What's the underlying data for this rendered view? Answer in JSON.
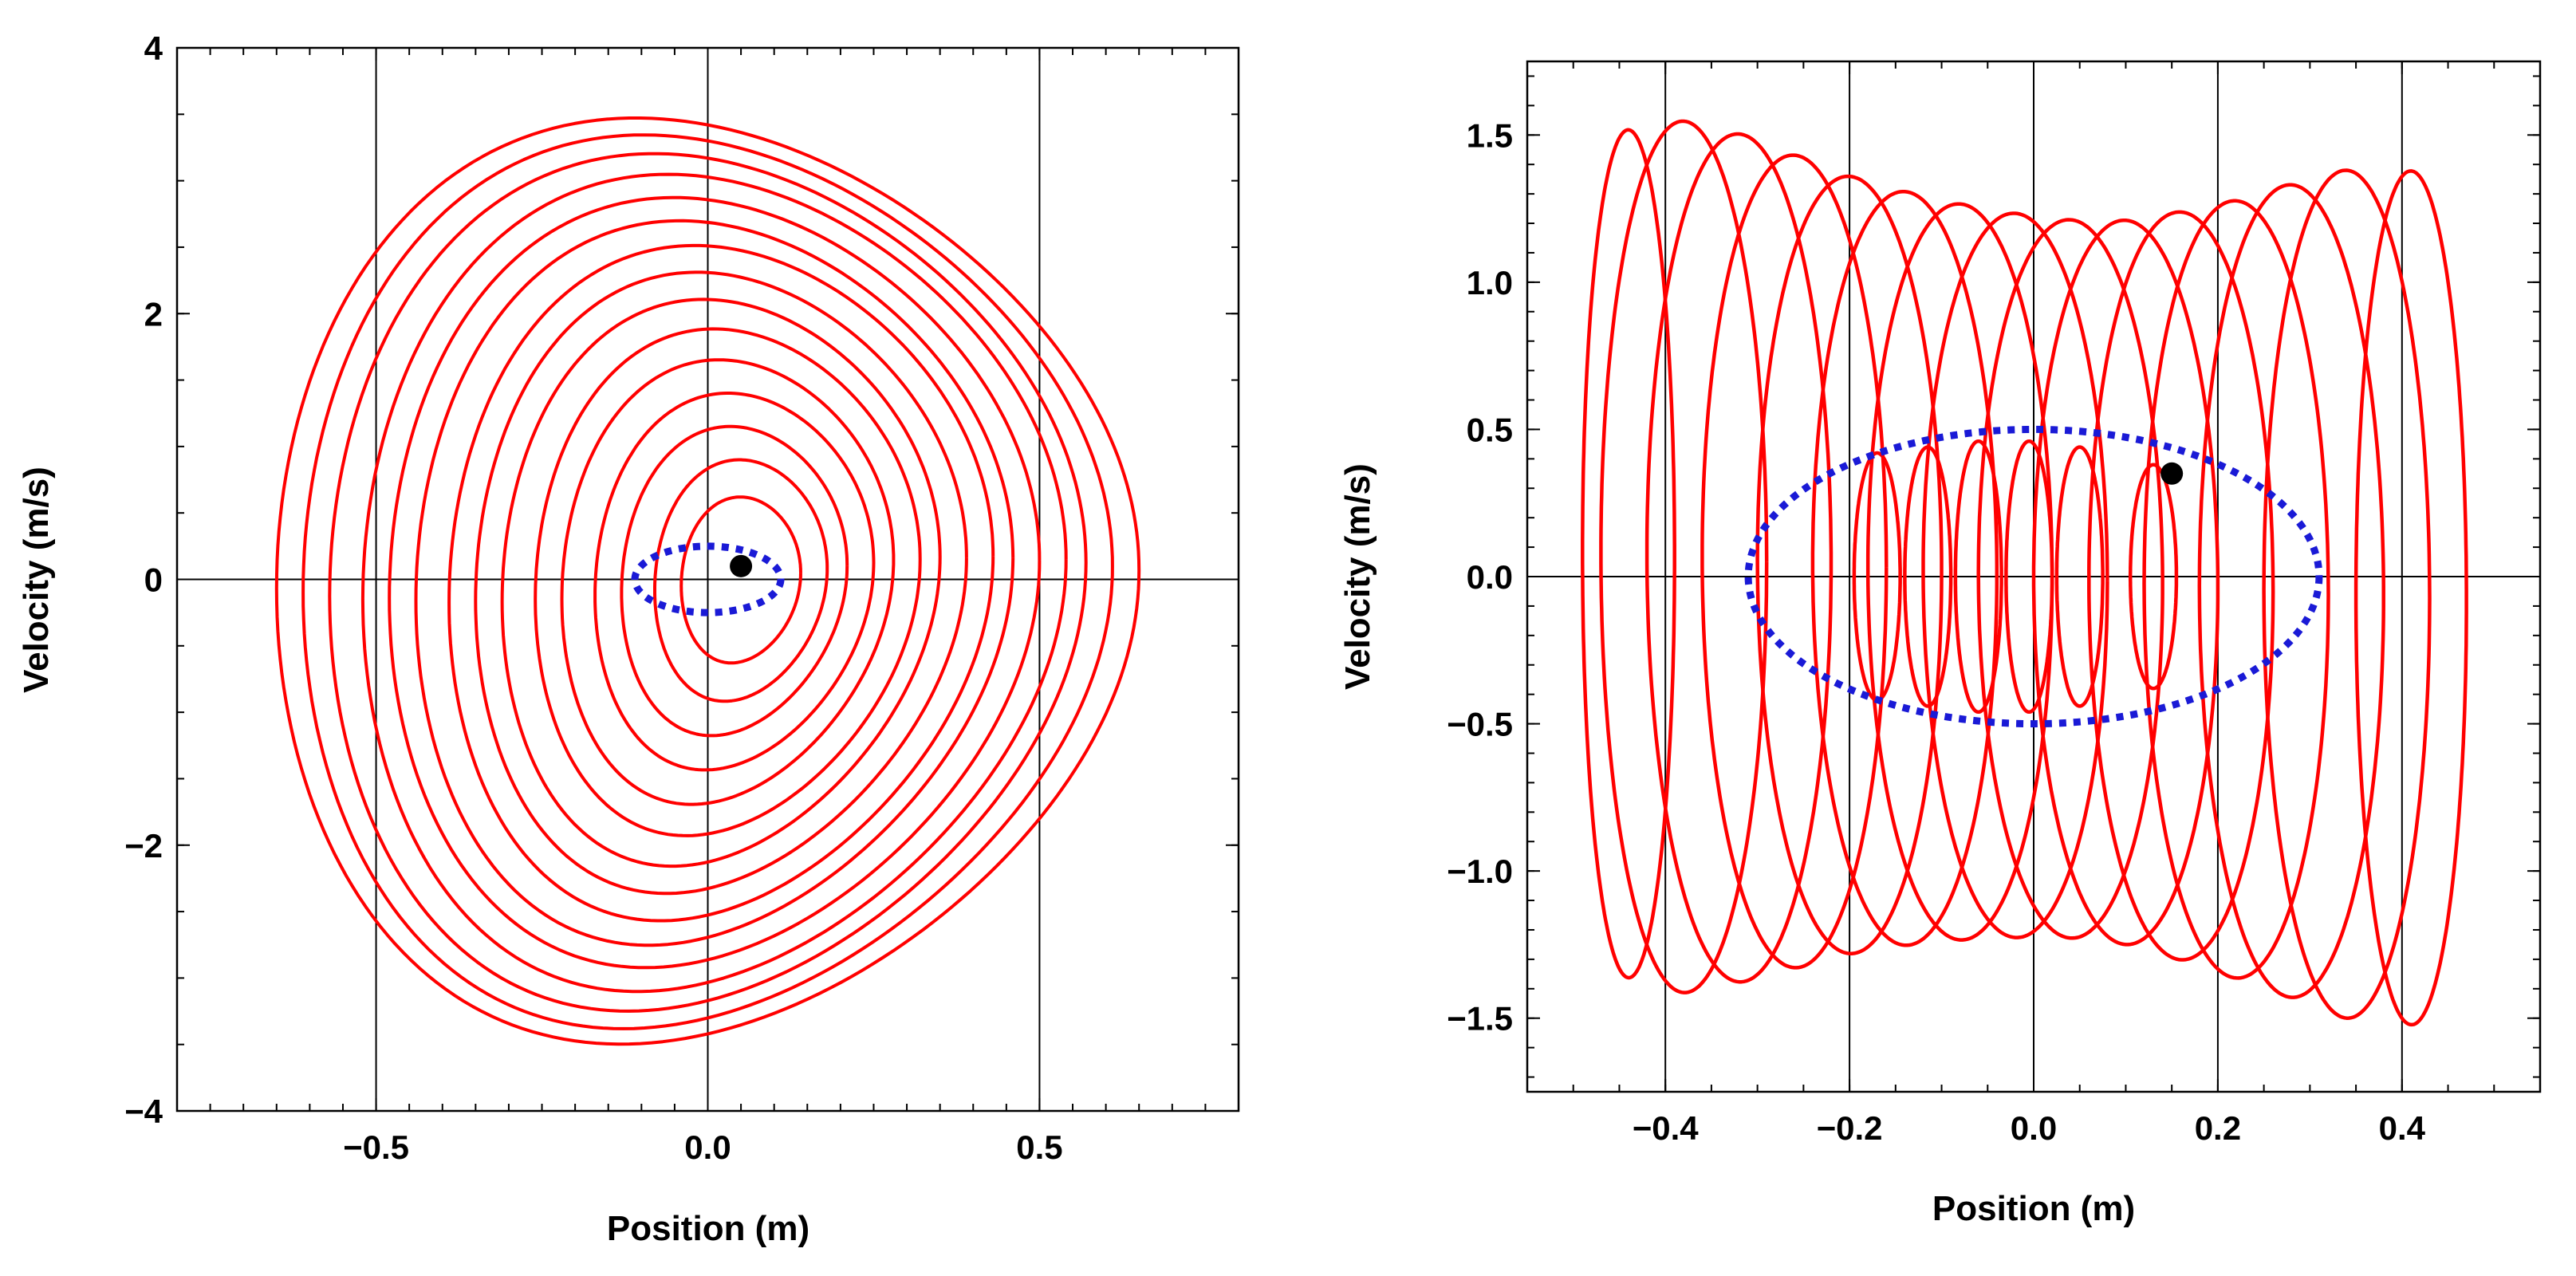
{
  "chart_data": [
    {
      "type": "line",
      "title": "",
      "xlabel": "Position (m)",
      "ylabel": "Velocity (m/s)",
      "xlim": [
        -0.8,
        0.8
      ],
      "ylim": [
        -4,
        4
      ],
      "grid": true,
      "gridlines_x": [
        -0.5,
        0.0,
        0.5
      ],
      "gridlines_y": [
        0
      ],
      "x_ticks": [
        {
          "value": -0.5,
          "label": "−0.5"
        },
        {
          "value": 0.0,
          "label": "0.0"
        },
        {
          "value": 0.5,
          "label": "0.5"
        }
      ],
      "y_ticks": [
        {
          "value": 4,
          "label": "4"
        },
        {
          "value": 2,
          "label": "2"
        },
        {
          "value": 0,
          "label": "0"
        },
        {
          "value": -2,
          "label": "−2"
        },
        {
          "value": -4,
          "label": "−4"
        }
      ],
      "series": [
        {
          "name": "trajectory",
          "style": "solid",
          "color": "#ff0000",
          "loops": [
            {
              "a": 0.65,
              "b": 3.42,
              "cx": 0.0,
              "skew": 0.22,
              "asym": 0.02
            },
            {
              "a": 0.61,
              "b": 3.3,
              "cx": 0.0,
              "skew": 0.22,
              "asym": 0.03
            },
            {
              "a": 0.57,
              "b": 3.17,
              "cx": 0.0,
              "skew": 0.21,
              "asym": 0.04
            },
            {
              "a": 0.53,
              "b": 3.02,
              "cx": 0.01,
              "skew": 0.21,
              "asym": 0.05
            },
            {
              "a": 0.49,
              "b": 2.85,
              "cx": 0.01,
              "skew": 0.2,
              "asym": 0.05
            },
            {
              "a": 0.45,
              "b": 2.68,
              "cx": 0.01,
              "skew": 0.2,
              "asym": 0.06
            },
            {
              "a": 0.41,
              "b": 2.5,
              "cx": 0.02,
              "skew": 0.19,
              "asym": 0.07
            },
            {
              "a": 0.37,
              "b": 2.3,
              "cx": 0.02,
              "skew": 0.19,
              "asym": 0.07
            },
            {
              "a": 0.33,
              "b": 2.1,
              "cx": 0.02,
              "skew": 0.18,
              "asym": 0.08
            },
            {
              "a": 0.29,
              "b": 1.88,
              "cx": 0.03,
              "skew": 0.17,
              "asym": 0.08
            },
            {
              "a": 0.25,
              "b": 1.65,
              "cx": 0.03,
              "skew": 0.16,
              "asym": 0.09
            },
            {
              "a": 0.21,
              "b": 1.4,
              "cx": 0.04,
              "skew": 0.15,
              "asym": 0.09
            },
            {
              "a": 0.17,
              "b": 1.15,
              "cx": 0.04,
              "skew": 0.14,
              "asym": 0.09
            },
            {
              "a": 0.13,
              "b": 0.9,
              "cx": 0.05,
              "skew": 0.12,
              "asym": 0.09
            },
            {
              "a": 0.09,
              "b": 0.62,
              "cx": 0.05,
              "skew": 0.1,
              "asym": 0.08
            }
          ]
        },
        {
          "name": "boundary",
          "style": "dotted",
          "color": "#1a1ad6",
          "ellipse": {
            "cx": 0.0,
            "cy": 0.0,
            "a": 0.11,
            "b": 0.25
          }
        }
      ],
      "marker": {
        "x": 0.05,
        "y": 0.1,
        "color": "#000000"
      }
    },
    {
      "type": "line",
      "title": "",
      "xlabel": "Position (m)",
      "ylabel": "Velocity (m/s)",
      "xlim": [
        -0.55,
        0.55
      ],
      "ylim": [
        -1.75,
        1.75
      ],
      "grid": true,
      "gridlines_x": [
        -0.4,
        -0.2,
        0.0,
        0.2,
        0.4
      ],
      "gridlines_y": [
        0
      ],
      "x_ticks": [
        {
          "value": -0.4,
          "label": "−0.4"
        },
        {
          "value": -0.2,
          "label": "−0.2"
        },
        {
          "value": 0.0,
          "label": "0.0"
        },
        {
          "value": 0.2,
          "label": "0.2"
        },
        {
          "value": 0.4,
          "label": "0.4"
        }
      ],
      "y_ticks": [
        {
          "value": 1.5,
          "label": "1.5"
        },
        {
          "value": 1.0,
          "label": "1.0"
        },
        {
          "value": 0.5,
          "label": "0.5"
        },
        {
          "value": 0.0,
          "label": "0.0"
        },
        {
          "value": -0.5,
          "label": "−0.5"
        },
        {
          "value": -1.0,
          "label": "−1.0"
        },
        {
          "value": -1.5,
          "label": "−1.5"
        }
      ],
      "series": [
        {
          "name": "trajectory",
          "style": "solid",
          "color": "#ff0000",
          "loops": [
            {
              "cx": -0.44,
              "a": 0.05,
              "b": 1.44,
              "tilt": 0.08
            },
            {
              "cx": -0.38,
              "a": 0.09,
              "b": 1.48,
              "tilt": 0.08
            },
            {
              "cx": -0.32,
              "a": 0.1,
              "b": 1.44,
              "tilt": 0.09
            },
            {
              "cx": -0.26,
              "a": 0.1,
              "b": 1.38,
              "tilt": 0.09
            },
            {
              "cx": -0.2,
              "a": 0.1,
              "b": 1.32,
              "tilt": 0.09
            },
            {
              "cx": -0.14,
              "a": 0.1,
              "b": 1.28,
              "tilt": 0.09
            },
            {
              "cx": -0.08,
              "a": 0.1,
              "b": 1.25,
              "tilt": 0.09
            },
            {
              "cx": -0.02,
              "a": 0.1,
              "b": 1.23,
              "tilt": 0.09
            },
            {
              "cx": 0.04,
              "a": 0.1,
              "b": 1.22,
              "tilt": 0.09
            },
            {
              "cx": 0.1,
              "a": 0.1,
              "b": 1.23,
              "tilt": 0.09
            },
            {
              "cx": 0.16,
              "a": 0.1,
              "b": 1.27,
              "tilt": 0.09
            },
            {
              "cx": 0.22,
              "a": 0.1,
              "b": 1.32,
              "tilt": 0.09
            },
            {
              "cx": 0.28,
              "a": 0.1,
              "b": 1.38,
              "tilt": 0.08
            },
            {
              "cx": 0.34,
              "a": 0.09,
              "b": 1.44,
              "tilt": 0.08
            },
            {
              "cx": 0.41,
              "a": 0.06,
              "b": 1.45,
              "tilt": 0.08
            },
            {
              "cx": -0.17,
              "a": 0.025,
              "b": 0.42,
              "tilt": 0.0
            },
            {
              "cx": -0.115,
              "a": 0.025,
              "b": 0.44,
              "tilt": 0.0
            },
            {
              "cx": -0.06,
              "a": 0.025,
              "b": 0.46,
              "tilt": 0.0
            },
            {
              "cx": -0.005,
              "a": 0.025,
              "b": 0.46,
              "tilt": 0.0
            },
            {
              "cx": 0.05,
              "a": 0.025,
              "b": 0.44,
              "tilt": 0.0
            },
            {
              "cx": 0.13,
              "a": 0.025,
              "b": 0.38,
              "tilt": 0.0
            }
          ]
        },
        {
          "name": "boundary",
          "style": "dotted",
          "color": "#1a1ad6",
          "ellipse": {
            "cx": 0.0,
            "cy": 0.0,
            "a": 0.31,
            "b": 0.5
          }
        }
      ],
      "marker": {
        "x": 0.15,
        "y": 0.35,
        "color": "#000000"
      }
    }
  ]
}
